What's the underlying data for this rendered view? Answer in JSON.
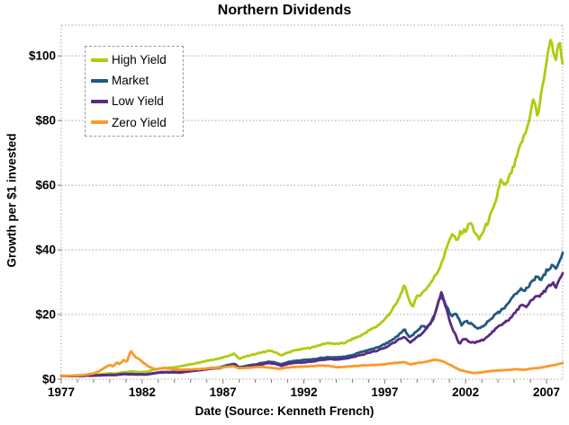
{
  "chart_data": {
    "type": "line",
    "title": "Northern Dividends",
    "xlabel": "Date (Source: Kenneth French)",
    "ylabel": "Growth per $1 invested",
    "xlim": [
      1977,
      2008
    ],
    "ylim": [
      0,
      109.5
    ],
    "x_ticks": [
      1977,
      1982,
      1987,
      1992,
      1997,
      2002,
      2007
    ],
    "x_minor_tick_interval": 1,
    "y_ticks": [
      0,
      20,
      40,
      60,
      80,
      100
    ],
    "y_tick_labels": [
      "$0",
      "$20",
      "$40",
      "$60",
      "$80",
      "$100"
    ],
    "grid": "horizontal-dashed",
    "legend_position": "top-left",
    "grid_color": "#a8a8a8",
    "series": [
      {
        "name": "High Yield",
        "color": "#aecb10",
        "points": [
          [
            1977.0,
            1.0
          ],
          [
            1977.5,
            1.02
          ],
          [
            1978.0,
            1.08
          ],
          [
            1978.5,
            1.2
          ],
          [
            1979.0,
            1.35
          ],
          [
            1979.5,
            1.55
          ],
          [
            1980.0,
            1.8
          ],
          [
            1980.3,
            1.7
          ],
          [
            1980.8,
            2.1
          ],
          [
            1981.3,
            2.4
          ],
          [
            1981.8,
            2.2
          ],
          [
            1982.3,
            2.3
          ],
          [
            1982.7,
            2.9
          ],
          [
            1983.2,
            3.4
          ],
          [
            1983.8,
            3.6
          ],
          [
            1984.3,
            3.9
          ],
          [
            1984.8,
            4.4
          ],
          [
            1985.3,
            4.9
          ],
          [
            1985.8,
            5.4
          ],
          [
            1986.3,
            6.0
          ],
          [
            1986.8,
            6.4
          ],
          [
            1987.2,
            7.0
          ],
          [
            1987.7,
            7.9
          ],
          [
            1988.0,
            6.3
          ],
          [
            1988.4,
            7.0
          ],
          [
            1988.8,
            7.5
          ],
          [
            1989.3,
            8.1
          ],
          [
            1989.8,
            8.8
          ],
          [
            1990.2,
            8.4
          ],
          [
            1990.6,
            7.4
          ],
          [
            1991.0,
            8.2
          ],
          [
            1991.5,
            9.0
          ],
          [
            1992.0,
            9.4
          ],
          [
            1992.5,
            9.8
          ],
          [
            1993.0,
            10.6
          ],
          [
            1993.5,
            11.2
          ],
          [
            1994.0,
            10.9
          ],
          [
            1994.5,
            11.2
          ],
          [
            1995.0,
            12.4
          ],
          [
            1995.5,
            13.4
          ],
          [
            1996.0,
            15.0
          ],
          [
            1996.5,
            16.3
          ],
          [
            1997.0,
            18.5
          ],
          [
            1997.4,
            21.0
          ],
          [
            1997.8,
            24.0
          ],
          [
            1998.2,
            28.9
          ],
          [
            1998.45,
            25.5
          ],
          [
            1998.7,
            22.3
          ],
          [
            1999.0,
            25.5
          ],
          [
            1999.4,
            27.0
          ],
          [
            1999.9,
            30.2
          ],
          [
            2000.3,
            33.5
          ],
          [
            2000.7,
            38.5
          ],
          [
            2001.0,
            43.5
          ],
          [
            2001.2,
            44.8
          ],
          [
            2001.45,
            42.5
          ],
          [
            2001.7,
            45.5
          ],
          [
            2002.0,
            46.0
          ],
          [
            2002.3,
            48.5
          ],
          [
            2002.8,
            43.0
          ],
          [
            2003.2,
            46.8
          ],
          [
            2003.8,
            53.5
          ],
          [
            2004.15,
            61.5
          ],
          [
            2004.45,
            59.5
          ],
          [
            2005.0,
            66.0
          ],
          [
            2005.4,
            72.5
          ],
          [
            2005.8,
            77.5
          ],
          [
            2006.2,
            87.0
          ],
          [
            2006.45,
            81.0
          ],
          [
            2006.9,
            95.0
          ],
          [
            2007.25,
            105.5
          ],
          [
            2007.55,
            98.5
          ],
          [
            2007.8,
            104.5
          ],
          [
            2008.0,
            97.0
          ]
        ]
      },
      {
        "name": "Market",
        "color": "#1f5a7e",
        "points": [
          [
            1977.0,
            1.0
          ],
          [
            1977.5,
            0.98
          ],
          [
            1978.0,
            1.0
          ],
          [
            1978.5,
            1.08
          ],
          [
            1979.0,
            1.15
          ],
          [
            1979.5,
            1.25
          ],
          [
            1980.0,
            1.35
          ],
          [
            1980.3,
            1.3
          ],
          [
            1980.8,
            1.65
          ],
          [
            1981.3,
            1.6
          ],
          [
            1981.8,
            1.5
          ],
          [
            1982.3,
            1.52
          ],
          [
            1982.7,
            1.85
          ],
          [
            1983.2,
            2.2
          ],
          [
            1983.8,
            2.25
          ],
          [
            1984.3,
            2.2
          ],
          [
            1984.8,
            2.5
          ],
          [
            1985.3,
            2.8
          ],
          [
            1985.8,
            3.1
          ],
          [
            1986.3,
            3.5
          ],
          [
            1986.8,
            3.6
          ],
          [
            1987.2,
            4.3
          ],
          [
            1987.7,
            4.8
          ],
          [
            1988.0,
            3.7
          ],
          [
            1988.4,
            4.1
          ],
          [
            1988.8,
            4.4
          ],
          [
            1989.3,
            4.9
          ],
          [
            1989.8,
            5.4
          ],
          [
            1990.2,
            5.2
          ],
          [
            1990.6,
            4.6
          ],
          [
            1991.0,
            5.3
          ],
          [
            1991.5,
            5.7
          ],
          [
            1992.0,
            5.9
          ],
          [
            1992.5,
            6.1
          ],
          [
            1993.0,
            6.5
          ],
          [
            1993.5,
            6.8
          ],
          [
            1994.0,
            6.7
          ],
          [
            1994.5,
            6.9
          ],
          [
            1995.0,
            7.5
          ],
          [
            1995.5,
            8.3
          ],
          [
            1996.0,
            9.0
          ],
          [
            1996.5,
            9.8
          ],
          [
            1997.0,
            10.8
          ],
          [
            1997.4,
            12.0
          ],
          [
            1997.8,
            13.3
          ],
          [
            1998.2,
            15.5
          ],
          [
            1998.55,
            12.8
          ],
          [
            1999.0,
            15.0
          ],
          [
            1999.3,
            16.5
          ],
          [
            1999.6,
            16.0
          ],
          [
            2000.0,
            18.5
          ],
          [
            2000.45,
            25.8
          ],
          [
            2000.75,
            23.5
          ],
          [
            2001.1,
            19.5
          ],
          [
            2001.4,
            20.5
          ],
          [
            2001.75,
            16.8
          ],
          [
            2002.0,
            18.0
          ],
          [
            2002.4,
            17.0
          ],
          [
            2002.75,
            15.6
          ],
          [
            2003.1,
            16.5
          ],
          [
            2003.5,
            18.5
          ],
          [
            2003.9,
            20.2
          ],
          [
            2004.4,
            22.0
          ],
          [
            2004.8,
            24.5
          ],
          [
            2005.2,
            27.0
          ],
          [
            2005.45,
            28.3
          ],
          [
            2005.65,
            27.4
          ],
          [
            2006.0,
            29.5
          ],
          [
            2006.4,
            31.9
          ],
          [
            2006.65,
            30.3
          ],
          [
            2007.0,
            33.5
          ],
          [
            2007.4,
            35.3
          ],
          [
            2007.6,
            34.2
          ],
          [
            2007.8,
            36.5
          ],
          [
            2008.0,
            38.7
          ]
        ]
      },
      {
        "name": "Low Yield",
        "color": "#5a2b82",
        "points": [
          [
            1977.0,
            1.0
          ],
          [
            1977.5,
            0.97
          ],
          [
            1978.0,
            1.0
          ],
          [
            1978.5,
            1.05
          ],
          [
            1979.0,
            1.1
          ],
          [
            1979.5,
            1.2
          ],
          [
            1980.0,
            1.3
          ],
          [
            1980.3,
            1.25
          ],
          [
            1980.8,
            1.55
          ],
          [
            1981.3,
            1.5
          ],
          [
            1981.8,
            1.45
          ],
          [
            1982.3,
            1.45
          ],
          [
            1982.7,
            1.75
          ],
          [
            1983.2,
            2.1
          ],
          [
            1983.8,
            2.1
          ],
          [
            1984.3,
            2.05
          ],
          [
            1984.8,
            2.3
          ],
          [
            1985.3,
            2.6
          ],
          [
            1985.8,
            2.9
          ],
          [
            1986.3,
            3.3
          ],
          [
            1986.8,
            3.4
          ],
          [
            1987.2,
            4.0
          ],
          [
            1987.7,
            4.4
          ],
          [
            1988.0,
            3.4
          ],
          [
            1988.4,
            3.8
          ],
          [
            1988.8,
            4.1
          ],
          [
            1989.3,
            4.5
          ],
          [
            1989.8,
            5.0
          ],
          [
            1990.2,
            4.8
          ],
          [
            1990.6,
            4.1
          ],
          [
            1991.0,
            4.7
          ],
          [
            1991.5,
            5.1
          ],
          [
            1992.0,
            5.2
          ],
          [
            1992.5,
            5.4
          ],
          [
            1993.0,
            5.9
          ],
          [
            1993.5,
            6.2
          ],
          [
            1994.0,
            6.1
          ],
          [
            1994.5,
            6.3
          ],
          [
            1995.0,
            6.8
          ],
          [
            1995.5,
            7.4
          ],
          [
            1996.0,
            8.1
          ],
          [
            1996.5,
            8.8
          ],
          [
            1997.0,
            9.7
          ],
          [
            1997.4,
            10.8
          ],
          [
            1997.8,
            12.0
          ],
          [
            1998.2,
            13.2
          ],
          [
            1998.55,
            11.3
          ],
          [
            1999.0,
            13.0
          ],
          [
            1999.4,
            14.5
          ],
          [
            1999.8,
            17.0
          ],
          [
            2000.1,
            20.0
          ],
          [
            2000.5,
            26.8
          ],
          [
            2000.8,
            22.0
          ],
          [
            2001.1,
            16.5
          ],
          [
            2001.4,
            13.5
          ],
          [
            2001.6,
            10.9
          ],
          [
            2001.9,
            12.5
          ],
          [
            2002.2,
            11.7
          ],
          [
            2002.5,
            11.2
          ],
          [
            2002.8,
            11.8
          ],
          [
            2003.1,
            12.2
          ],
          [
            2003.5,
            13.8
          ],
          [
            2003.9,
            15.8
          ],
          [
            2004.4,
            17.5
          ],
          [
            2004.8,
            19.0
          ],
          [
            2005.2,
            21.5
          ],
          [
            2005.45,
            22.9
          ],
          [
            2005.7,
            22.3
          ],
          [
            2006.0,
            24.3
          ],
          [
            2006.3,
            25.3
          ],
          [
            2006.6,
            25.8
          ],
          [
            2007.0,
            27.8
          ],
          [
            2007.35,
            29.8
          ],
          [
            2007.6,
            28.6
          ],
          [
            2007.8,
            30.5
          ],
          [
            2008.0,
            33.0
          ]
        ]
      },
      {
        "name": "Zero Yield",
        "color": "#f9992a",
        "points": [
          [
            1977.0,
            1.0
          ],
          [
            1977.5,
            1.05
          ],
          [
            1978.0,
            1.15
          ],
          [
            1978.5,
            1.35
          ],
          [
            1979.0,
            1.8
          ],
          [
            1979.4,
            2.6
          ],
          [
            1979.7,
            3.6
          ],
          [
            1980.0,
            4.4
          ],
          [
            1980.2,
            3.9
          ],
          [
            1980.45,
            5.2
          ],
          [
            1980.6,
            4.6
          ],
          [
            1980.85,
            5.9
          ],
          [
            1981.05,
            5.3
          ],
          [
            1981.3,
            8.7
          ],
          [
            1981.55,
            7.0
          ],
          [
            1981.8,
            6.2
          ],
          [
            1982.1,
            5.0
          ],
          [
            1982.4,
            3.9
          ],
          [
            1982.8,
            3.1
          ],
          [
            1983.3,
            3.4
          ],
          [
            1983.8,
            3.2
          ],
          [
            1984.3,
            2.9
          ],
          [
            1984.8,
            3.0
          ],
          [
            1985.3,
            3.1
          ],
          [
            1985.8,
            3.2
          ],
          [
            1986.3,
            3.5
          ],
          [
            1986.8,
            3.5
          ],
          [
            1987.2,
            3.8
          ],
          [
            1987.6,
            4.0
          ],
          [
            1988.0,
            3.4
          ],
          [
            1988.5,
            3.5
          ],
          [
            1989.0,
            3.7
          ],
          [
            1989.5,
            3.8
          ],
          [
            1990.0,
            3.5
          ],
          [
            1990.5,
            3.2
          ],
          [
            1991.0,
            3.6
          ],
          [
            1991.5,
            3.8
          ],
          [
            1992.0,
            3.9
          ],
          [
            1992.5,
            4.0
          ],
          [
            1993.0,
            4.2
          ],
          [
            1993.5,
            4.1
          ],
          [
            1994.0,
            3.7
          ],
          [
            1994.5,
            3.8
          ],
          [
            1995.0,
            4.0
          ],
          [
            1995.5,
            4.2
          ],
          [
            1996.0,
            4.3
          ],
          [
            1996.5,
            4.4
          ],
          [
            1997.0,
            4.6
          ],
          [
            1997.5,
            5.0
          ],
          [
            1998.2,
            5.3
          ],
          [
            1998.6,
            4.6
          ],
          [
            1999.0,
            5.0
          ],
          [
            1999.5,
            5.3
          ],
          [
            2000.1,
            6.0
          ],
          [
            2000.6,
            5.5
          ],
          [
            2001.1,
            4.3
          ],
          [
            2001.6,
            2.9
          ],
          [
            2002.0,
            2.4
          ],
          [
            2002.5,
            1.9
          ],
          [
            2003.0,
            2.1
          ],
          [
            2003.6,
            2.6
          ],
          [
            2004.2,
            2.7
          ],
          [
            2004.7,
            2.9
          ],
          [
            2005.1,
            3.1
          ],
          [
            2005.6,
            2.9
          ],
          [
            2006.1,
            3.3
          ],
          [
            2006.6,
            3.5
          ],
          [
            2007.0,
            3.9
          ],
          [
            2007.5,
            4.4
          ],
          [
            2008.0,
            5.0
          ]
        ]
      }
    ]
  }
}
